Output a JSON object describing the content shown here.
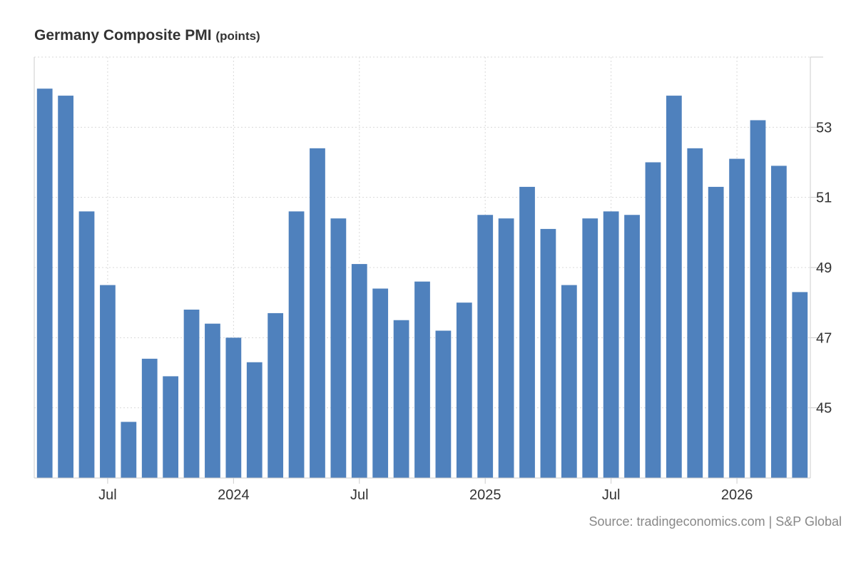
{
  "chart_data": {
    "type": "bar",
    "title": "Germany Composite PMI",
    "unit": "(points)",
    "source": "Source: tradingeconomics.com | S&P Global",
    "color": "#4f81bd",
    "values": [
      54.1,
      53.9,
      50.6,
      48.5,
      44.6,
      46.4,
      45.9,
      47.8,
      47.4,
      47.0,
      46.3,
      47.7,
      50.6,
      52.4,
      50.4,
      49.1,
      48.4,
      47.5,
      48.6,
      47.2,
      48.0,
      50.5,
      50.4,
      51.3,
      50.1,
      48.5,
      50.4,
      50.6,
      50.5,
      52.0,
      53.9,
      52.4,
      51.3,
      52.1,
      53.2,
      51.9,
      48.3
    ],
    "x_tick_labels": [
      {
        "index": 3,
        "label": "Jul"
      },
      {
        "index": 9,
        "label": "2024"
      },
      {
        "index": 15,
        "label": "Jul"
      },
      {
        "index": 21,
        "label": "2025"
      },
      {
        "index": 27,
        "label": "Jul"
      },
      {
        "index": 33,
        "label": "2026"
      }
    ],
    "y_ticks": [
      45,
      47,
      49,
      51,
      53
    ],
    "ylim": [
      43,
      55
    ],
    "grid": true,
    "y_axis_side": "right"
  }
}
